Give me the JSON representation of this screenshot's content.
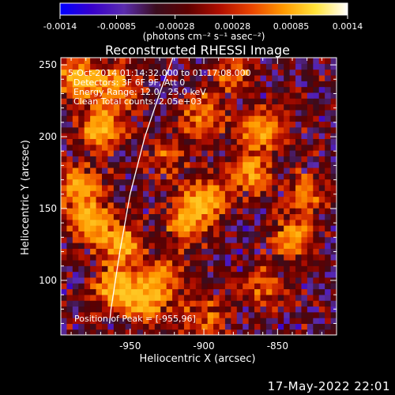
{
  "chart_data": {
    "type": "heatmap",
    "title": "Reconstructed RHESSI Image",
    "xlabel": "Heliocentric X (arcsec)",
    "ylabel": "Heliocentric Y (arcsec)",
    "xlim": [
      -997,
      -810
    ],
    "ylim": [
      62,
      255
    ],
    "x_ticks": [
      -950,
      -900,
      -850
    ],
    "x_tick_labels": [
      "-950",
      "-900",
      "-850"
    ],
    "y_ticks": [
      100,
      150,
      200,
      250
    ],
    "y_tick_labels": [
      "100",
      "150",
      "200",
      "250"
    ],
    "colorbar": {
      "range": [
        -0.0014,
        0.0014
      ],
      "ticks": [
        -0.0014,
        -0.00085,
        -0.00028,
        0.00028,
        0.00085,
        0.0014
      ],
      "tick_labels": [
        "-0.0014",
        "-0.00085",
        "-0.00028",
        "0.00028",
        "0.00085",
        "0.0014"
      ],
      "units": "(photons cm⁻² s⁻¹ asec⁻²)",
      "colormap": [
        "#0000ff",
        "#3800cc",
        "#5a2cae",
        "#3a0d1e",
        "#5e0000",
        "#b00e00",
        "#ea4500",
        "#ff9a00",
        "#ffe33a",
        "#ffffff"
      ]
    },
    "annotations": [
      "5-Oct-2014 01:14:32.000 to 01:17:08.000",
      "Detectors: 3F 6F 9F, Att 0",
      "Energy Range: 12.0 - 25.0 keV",
      "Clean     Total counts: 2.05e+03"
    ],
    "peak_label": "Position of Peak = [-955,96]",
    "peak": [
      -955,
      96
    ],
    "limb_curve": [
      [
        -921,
        255
      ],
      [
        -930,
        230
      ],
      [
        -940,
        200
      ],
      [
        -950,
        160
      ],
      [
        -957,
        120
      ],
      [
        -963,
        80
      ],
      [
        -964,
        70
      ]
    ],
    "blob_centers": [
      {
        "x": -985,
        "y": 240,
        "v": 1.0
      },
      {
        "x": -960,
        "y": 235,
        "v": 0.85
      },
      {
        "x": -970,
        "y": 205,
        "v": 1.0
      },
      {
        "x": -985,
        "y": 165,
        "v": 0.95
      },
      {
        "x": -975,
        "y": 140,
        "v": 0.95
      },
      {
        "x": -955,
        "y": 125,
        "v": 0.9
      },
      {
        "x": -960,
        "y": 95,
        "v": 1.0
      },
      {
        "x": -940,
        "y": 85,
        "v": 0.85
      },
      {
        "x": -930,
        "y": 100,
        "v": 0.75
      },
      {
        "x": -900,
        "y": 155,
        "v": 1.0
      },
      {
        "x": -915,
        "y": 140,
        "v": 0.7
      },
      {
        "x": -870,
        "y": 175,
        "v": 0.85
      },
      {
        "x": -860,
        "y": 205,
        "v": 0.8
      },
      {
        "x": -900,
        "y": 215,
        "v": 0.75
      },
      {
        "x": -880,
        "y": 245,
        "v": 0.55
      },
      {
        "x": -840,
        "y": 130,
        "v": 0.75
      },
      {
        "x": -830,
        "y": 160,
        "v": 0.6
      },
      {
        "x": -900,
        "y": 75,
        "v": 0.55
      },
      {
        "x": -860,
        "y": 95,
        "v": 0.5
      },
      {
        "x": -925,
        "y": 185,
        "v": 0.45
      }
    ]
  },
  "footer_date": "17-May-2022 22:01"
}
